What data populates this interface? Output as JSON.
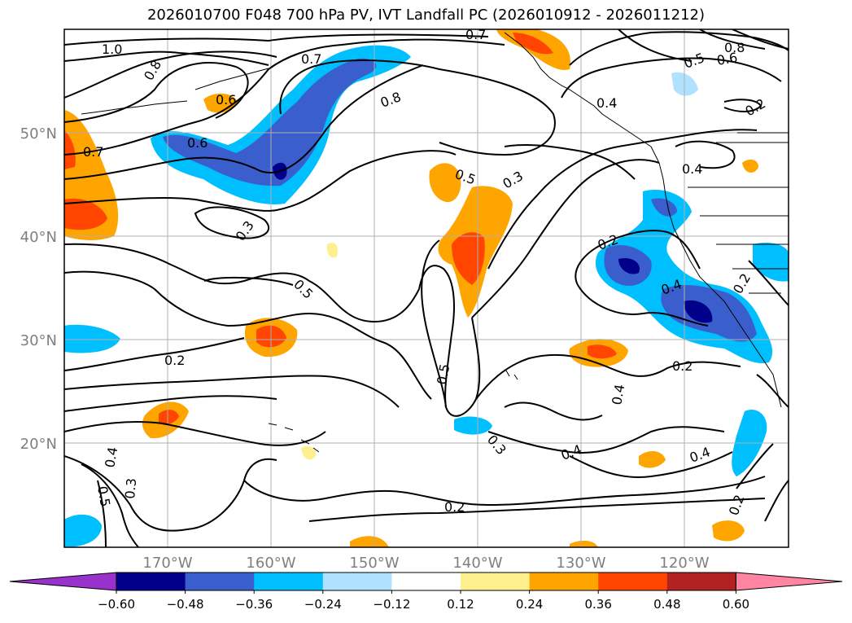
{
  "title": "2026010700 F048 700 hPa PV, IVT Landfall PC (2026010912 - 2026011212)",
  "lon_labels": [
    "170°W",
    "160°W",
    "150°W",
    "140°W",
    "130°W",
    "120°W"
  ],
  "lat_labels": [
    "50°N",
    "40°N",
    "30°N",
    "20°N"
  ],
  "contour_labels": [
    "1.0",
    "0.8",
    "0.7",
    "0.6",
    "0.8",
    "0.7",
    "0.6",
    "0.5",
    "0.4",
    "0.2",
    "0.7",
    "0.6",
    "0.8",
    "0.5",
    "0.3",
    "0.3",
    "0.5",
    "0.2",
    "0.4",
    "0.4",
    "0.2",
    "0.2",
    "0.4",
    "0.5",
    "0.4",
    "0.3",
    "0.2",
    "0.4",
    "0.4",
    "0.3",
    "0.5",
    "0.2",
    "0.2"
  ],
  "colorbar": {
    "ticks": [
      "−0.60",
      "−0.48",
      "−0.36",
      "−0.24",
      "−0.12",
      "0.12",
      "0.24",
      "0.36",
      "0.48",
      "0.60"
    ],
    "colors": [
      "#9932cc",
      "#00008b",
      "#3a5fcd",
      "#00bfff",
      "#b0e2ff",
      "#ffffff",
      "#fff08f",
      "#ffa500",
      "#ff4500",
      "#b22222",
      "#ff85a2"
    ]
  }
}
